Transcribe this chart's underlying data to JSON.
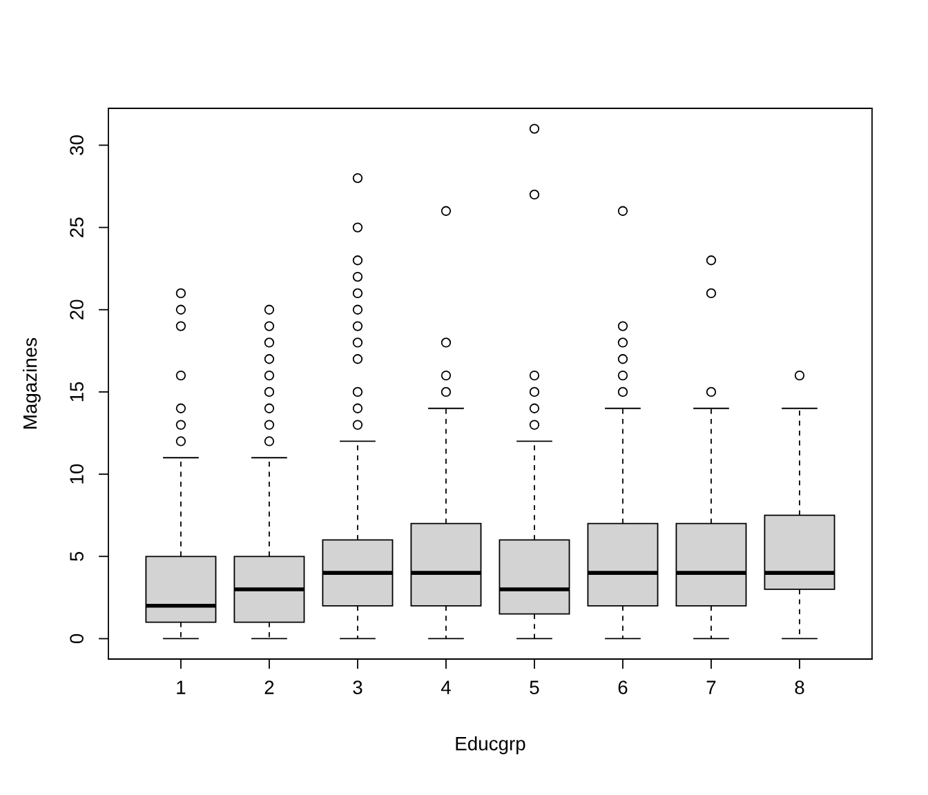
{
  "chart_data": {
    "type": "box",
    "xlabel": "Educgrp",
    "ylabel": "Magazines",
    "categories": [
      "1",
      "2",
      "3",
      "4",
      "5",
      "6",
      "7",
      "8"
    ],
    "series": [
      {
        "color": "#d3d3d3",
        "boxes": [
          {
            "low": 0,
            "q1": 1,
            "median": 2,
            "q3": 5,
            "high": 11,
            "outliers": [
              12,
              13,
              14,
              16,
              19,
              20,
              21
            ]
          },
          {
            "low": 0,
            "q1": 1,
            "median": 3,
            "q3": 5,
            "high": 11,
            "outliers": [
              12,
              13,
              14,
              15,
              16,
              17,
              18,
              19,
              20
            ]
          },
          {
            "low": 0,
            "q1": 2,
            "median": 4,
            "q3": 6,
            "high": 12,
            "outliers": [
              13,
              14,
              15,
              17,
              18,
              19,
              20,
              21,
              22,
              23,
              25,
              28
            ]
          },
          {
            "low": 0,
            "q1": 2,
            "median": 4,
            "q3": 7,
            "high": 14,
            "outliers": [
              15,
              16,
              18,
              26
            ]
          },
          {
            "low": 0,
            "q1": 1.5,
            "median": 3,
            "q3": 6,
            "high": 12,
            "outliers": [
              13,
              14,
              15,
              16,
              27,
              31
            ]
          },
          {
            "low": 0,
            "q1": 2,
            "median": 4,
            "q3": 7,
            "high": 14,
            "outliers": [
              15,
              16,
              17,
              18,
              19,
              26
            ]
          },
          {
            "low": 0,
            "q1": 2,
            "median": 4,
            "q3": 7,
            "high": 14,
            "outliers": [
              15,
              21,
              23
            ]
          },
          {
            "low": 0,
            "q1": 3,
            "median": 4,
            "q3": 7.5,
            "high": 14,
            "outliers": [
              16
            ]
          }
        ]
      }
    ],
    "ylim": [
      -1.24,
      32.24
    ],
    "yticks": [
      0,
      5,
      10,
      15,
      20,
      25,
      30
    ],
    "grid": false,
    "marker": "circle"
  }
}
